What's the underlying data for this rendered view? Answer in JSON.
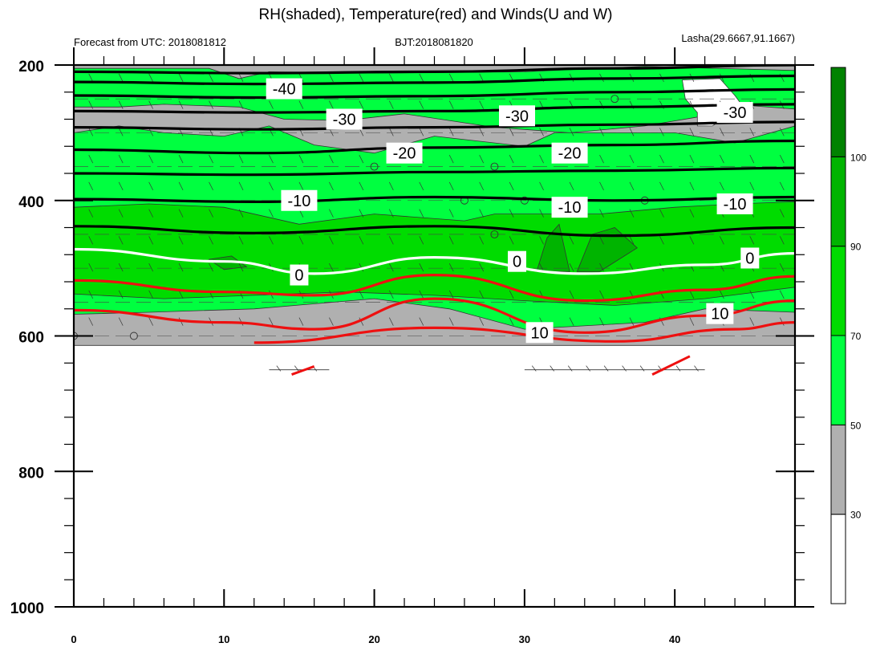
{
  "chart_data": {
    "type": "heatmap",
    "title": "RH(shaded), Temperature(red) and Winds(U and W)",
    "header": {
      "left": "Forecast from UTC: 2018081812",
      "center": "BJT:2018081820",
      "right": "Lasha(29.6667,91.1667)"
    },
    "x_axis": {
      "range": [
        0,
        48
      ],
      "major_ticks": [
        0,
        10,
        20,
        30,
        40
      ],
      "minor_step": 2
    },
    "y_axis": {
      "range": [
        200,
        1000
      ],
      "reversed": true,
      "major_ticks": [
        200,
        400,
        600,
        800,
        1000
      ],
      "minor_step": 40
    },
    "colorbar": {
      "levels": [
        30,
        50,
        70,
        90,
        100
      ],
      "colors": [
        "#ffffff",
        "#b0b0b0",
        "#00ff40",
        "#00dc00",
        "#00b400",
        "#008200"
      ]
    },
    "terrain_pressure": 614,
    "rh_regions": [
      {
        "cls": "gray",
        "points": [
          [
            0,
            200
          ],
          [
            48,
            200
          ],
          [
            48,
            614
          ],
          [
            0,
            614
          ]
        ]
      },
      {
        "cls": "g1",
        "points": [
          [
            0,
            205
          ],
          [
            9,
            205
          ],
          [
            11,
            220
          ],
          [
            13,
            210
          ],
          [
            20,
            212
          ],
          [
            30,
            210
          ],
          [
            38,
            202
          ],
          [
            48,
            208
          ],
          [
            48,
            265
          ],
          [
            45,
            260
          ],
          [
            42,
            275
          ],
          [
            38,
            290
          ],
          [
            33,
            300
          ],
          [
            28,
            292
          ],
          [
            22,
            272
          ],
          [
            18,
            282
          ],
          [
            14,
            280
          ],
          [
            11,
            262
          ],
          [
            6,
            258
          ],
          [
            3,
            262
          ],
          [
            0,
            262
          ]
        ]
      },
      {
        "cls": "g1",
        "points": [
          [
            0,
            300
          ],
          [
            3,
            290
          ],
          [
            6,
            300
          ],
          [
            10,
            305
          ],
          [
            13,
            290
          ],
          [
            16,
            318
          ],
          [
            20,
            330
          ],
          [
            24,
            305
          ],
          [
            30,
            320
          ],
          [
            32,
            300
          ],
          [
            40,
            300
          ],
          [
            44,
            315
          ],
          [
            48,
            290
          ],
          [
            48,
            565
          ],
          [
            42,
            560
          ],
          [
            38,
            580
          ],
          [
            30,
            590
          ],
          [
            25,
            560
          ],
          [
            20,
            545
          ],
          [
            12,
            560
          ],
          [
            5,
            565
          ],
          [
            0,
            568
          ]
        ]
      },
      {
        "cls": "g2",
        "points": [
          [
            0,
            410
          ],
          [
            5,
            405
          ],
          [
            10,
            410
          ],
          [
            15,
            435
          ],
          [
            20,
            420
          ],
          [
            26,
            430
          ],
          [
            28,
            420
          ],
          [
            35,
            420
          ],
          [
            40,
            410
          ],
          [
            44,
            405
          ],
          [
            48,
            402
          ],
          [
            48,
            528
          ],
          [
            42,
            545
          ],
          [
            36,
            555
          ],
          [
            30,
            548
          ],
          [
            24,
            540
          ],
          [
            18,
            535
          ],
          [
            12,
            540
          ],
          [
            6,
            545
          ],
          [
            0,
            538
          ]
        ]
      },
      {
        "cls": "g4",
        "points": [
          [
            9,
            487
          ],
          [
            10.5,
            482
          ],
          [
            11.5,
            498
          ],
          [
            10,
            502
          ]
        ]
      },
      {
        "cls": "g4",
        "points": [
          [
            30.8,
            505
          ],
          [
            31.5,
            455
          ],
          [
            32.3,
            435
          ],
          [
            33,
            505
          ]
        ]
      },
      {
        "cls": "g4",
        "points": [
          [
            33.5,
            505
          ],
          [
            34.5,
            450
          ],
          [
            36,
            440
          ],
          [
            37.5,
            470
          ],
          [
            35,
            505
          ]
        ]
      },
      {
        "cls": "white",
        "points": [
          [
            40.5,
            222
          ],
          [
            43,
            220
          ],
          [
            44,
            245
          ],
          [
            44.5,
            260
          ],
          [
            42.5,
            290
          ],
          [
            41.5,
            290
          ],
          [
            41.5,
            270
          ],
          [
            40.7,
            250
          ]
        ]
      }
    ],
    "isotherms": [
      {
        "label": "-40",
        "color": "#000000",
        "points": [
          [
            0,
            210
          ],
          [
            12,
            212
          ],
          [
            24,
            210
          ],
          [
            36,
            205
          ],
          [
            48,
            200
          ]
        ]
      },
      {
        "label": "",
        "color": "#000000",
        "points": [
          [
            0,
            225
          ],
          [
            12,
            228
          ],
          [
            24,
            226
          ],
          [
            36,
            220
          ],
          [
            48,
            216
          ]
        ]
      },
      {
        "label": "",
        "color": "#000000",
        "points": [
          [
            0,
            245
          ],
          [
            12,
            248
          ],
          [
            24,
            246
          ],
          [
            36,
            240
          ],
          [
            48,
            236
          ]
        ]
      },
      {
        "label": "-30",
        "color": "#000000",
        "points": [
          [
            0,
            268
          ],
          [
            12,
            270
          ],
          [
            24,
            268
          ],
          [
            36,
            262
          ],
          [
            48,
            258
          ]
        ]
      },
      {
        "label": "",
        "color": "#000000",
        "points": [
          [
            0,
            292
          ],
          [
            12,
            295
          ],
          [
            24,
            292
          ],
          [
            36,
            288
          ],
          [
            48,
            284
          ]
        ]
      },
      {
        "label": "-20",
        "color": "#000000",
        "points": [
          [
            0,
            325
          ],
          [
            12,
            330
          ],
          [
            24,
            322
          ],
          [
            36,
            318
          ],
          [
            48,
            312
          ]
        ]
      },
      {
        "label": "",
        "color": "#000000",
        "points": [
          [
            0,
            360
          ],
          [
            12,
            362
          ],
          [
            24,
            358
          ],
          [
            36,
            356
          ],
          [
            48,
            352
          ]
        ]
      },
      {
        "label": "-10",
        "color": "#000000",
        "points": [
          [
            0,
            398
          ],
          [
            12,
            402
          ],
          [
            24,
            395
          ],
          [
            36,
            400
          ],
          [
            48,
            395
          ]
        ]
      },
      {
        "label": "",
        "color": "#000000",
        "points": [
          [
            0,
            438
          ],
          [
            12,
            448
          ],
          [
            24,
            438
          ],
          [
            36,
            452
          ],
          [
            48,
            440
          ]
        ]
      },
      {
        "label": "0",
        "color": "#ffffff",
        "points": [
          [
            0,
            472
          ],
          [
            10,
            490
          ],
          [
            16,
            508
          ],
          [
            24,
            484
          ],
          [
            34,
            508
          ],
          [
            42,
            495
          ],
          [
            48,
            478
          ]
        ]
      },
      {
        "label": "",
        "color": "#ee1010",
        "points": [
          [
            0,
            518
          ],
          [
            10,
            535
          ],
          [
            16,
            540
          ],
          [
            24,
            510
          ],
          [
            34,
            548
          ],
          [
            42,
            532
          ],
          [
            48,
            512
          ]
        ]
      },
      {
        "label": "10",
        "color": "#ee1010",
        "points": [
          [
            0,
            562
          ],
          [
            10,
            580
          ],
          [
            16,
            590
          ],
          [
            24,
            545
          ],
          [
            34,
            595
          ],
          [
            42,
            570
          ],
          [
            48,
            548
          ]
        ]
      },
      {
        "label": "",
        "color": "#ee1010",
        "points": [
          [
            12,
            610
          ],
          [
            24,
            588
          ],
          [
            36,
            608
          ],
          [
            44,
            590
          ],
          [
            48,
            580
          ]
        ]
      }
    ],
    "contour_labels": [
      {
        "text": "-40",
        "x": 14,
        "y": 235
      },
      {
        "text": "-30",
        "x": 18,
        "y": 280
      },
      {
        "text": "-30",
        "x": 29.5,
        "y": 275
      },
      {
        "text": "-30",
        "x": 44,
        "y": 270
      },
      {
        "text": "-20",
        "x": 22,
        "y": 330
      },
      {
        "text": "-20",
        "x": 33,
        "y": 330
      },
      {
        "text": "-10",
        "x": 15,
        "y": 400
      },
      {
        "text": "-10",
        "x": 33,
        "y": 410
      },
      {
        "text": "-10",
        "x": 44,
        "y": 405
      },
      {
        "text": "0",
        "x": 15,
        "y": 510
      },
      {
        "text": "0",
        "x": 29.5,
        "y": 490
      },
      {
        "text": "0",
        "x": 45,
        "y": 485
      },
      {
        "text": "10",
        "x": 31,
        "y": 595
      },
      {
        "text": "10",
        "x": 43,
        "y": 567
      }
    ]
  }
}
